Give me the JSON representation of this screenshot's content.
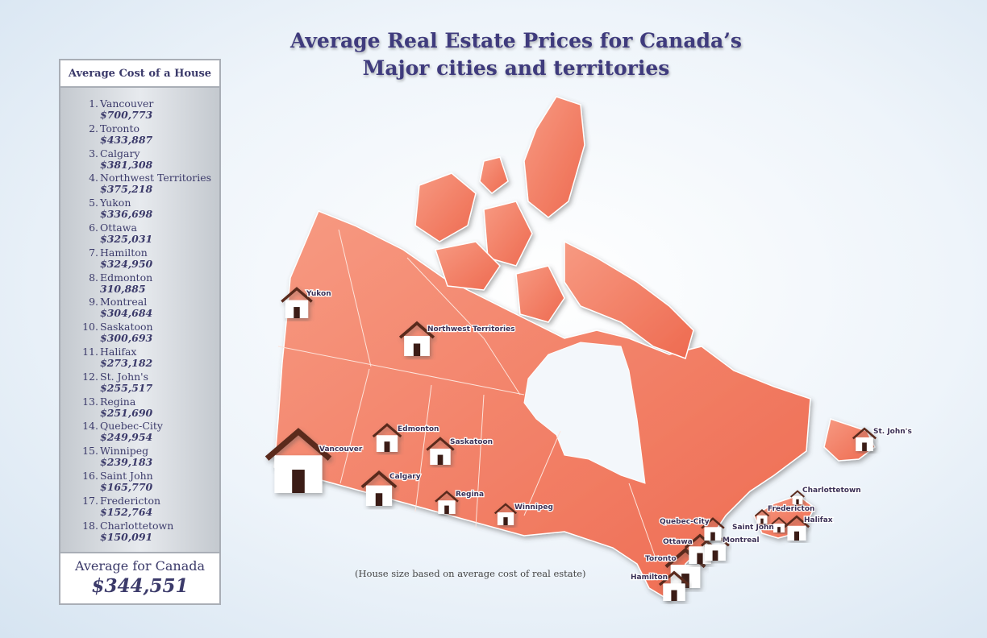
{
  "title": [
    "Average Real Estate Prices for Canada’s",
    "Major cities and territories"
  ],
  "sidebar": {
    "heading": "Average Cost of a House",
    "cities": [
      {
        "rank": "1.",
        "name": "Vancouver",
        "value": 700773,
        "label": "$700,773"
      },
      {
        "rank": "2.",
        "name": "Toronto",
        "value": 433887,
        "label": "$433,887"
      },
      {
        "rank": "3.",
        "name": "Calgary",
        "value": 381308,
        "label": "$381,308"
      },
      {
        "rank": "4.",
        "name": "Northwest Territories",
        "value": 375218,
        "label": "$375,218"
      },
      {
        "rank": "5.",
        "name": "Yukon",
        "value": 336698,
        "label": "$336,698"
      },
      {
        "rank": "6.",
        "name": "Ottawa",
        "value": 325031,
        "label": "$325,031"
      },
      {
        "rank": "7.",
        "name": "Hamilton",
        "value": 324950,
        "label": "$324,950"
      },
      {
        "rank": "8.",
        "name": "Edmonton",
        "value": 310885,
        "label": "310,885"
      },
      {
        "rank": "9.",
        "name": "Montreal",
        "value": 304684,
        "label": "$304,684"
      },
      {
        "rank": "10.",
        "name": "Saskatoon",
        "value": 300693,
        "label": "$300,693"
      },
      {
        "rank": "11.",
        "name": "Halifax",
        "value": 273182,
        "label": "$273,182"
      },
      {
        "rank": "12.",
        "name": "St. John's",
        "value": 255517,
        "label": "$255,517"
      },
      {
        "rank": "13.",
        "name": "Regina",
        "value": 251690,
        "label": "$251,690"
      },
      {
        "rank": "14.",
        "name": "Quebec-City",
        "value": 249954,
        "label": "$249,954"
      },
      {
        "rank": "15.",
        "name": "Winnipeg",
        "value": 239183,
        "label": "$239,183"
      },
      {
        "rank": "16.",
        "name": "Saint John",
        "value": 165770,
        "label": "$165,770"
      },
      {
        "rank": "17.",
        "name": "Fredericton",
        "value": 152764,
        "label": "$152,764"
      },
      {
        "rank": "18.",
        "name": "Charlottetown",
        "value": 150091,
        "label": "$150,091"
      }
    ],
    "average_caption": "Average for Canada",
    "average": {
      "value": 344551,
      "label": "$344,551"
    }
  },
  "footnote": "(House size based on average cost of real estate)"
}
